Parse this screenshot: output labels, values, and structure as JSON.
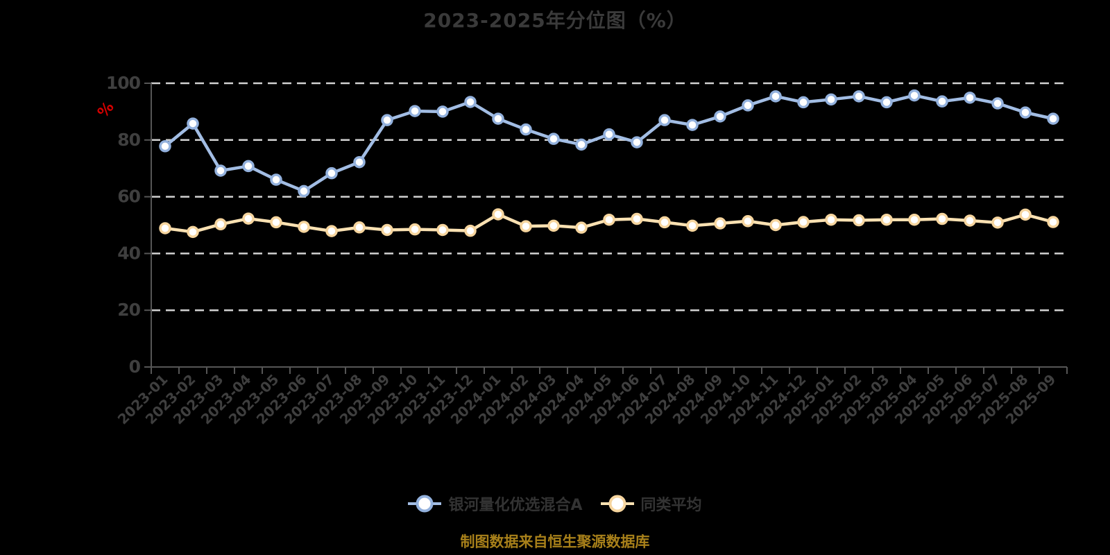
{
  "chart_data": {
    "type": "line",
    "title": "2023-2025年分位图（%）",
    "ylabel": "%",
    "xlabel": "",
    "ylim": [
      0,
      100
    ],
    "y_ticks": [
      0,
      20,
      40,
      60,
      80,
      100
    ],
    "grid": true,
    "grid_style": "dashed",
    "legend_position": "bottom",
    "categories": [
      "2023-01",
      "2023-02",
      "2023-03",
      "2023-04",
      "2023-05",
      "2023-06",
      "2023-07",
      "2023-08",
      "2023-09",
      "2023-10",
      "2023-11",
      "2023-12",
      "2024-01",
      "2024-02",
      "2024-03",
      "2024-04",
      "2024-05",
      "2024-06",
      "2024-07",
      "2024-08",
      "2024-09",
      "2024-10",
      "2024-11",
      "2024-12",
      "2025-01",
      "2025-02",
      "2025-03",
      "2025-04",
      "2025-05",
      "2025-06",
      "2025-07",
      "2025-08",
      "2025-09"
    ],
    "series": [
      {
        "name": "银河量化优选混合A",
        "color": "#a2bde4",
        "marker_ring": "#93b1dd",
        "values": [
          77.8,
          85.8,
          69.2,
          70.8,
          66.0,
          62.0,
          68.3,
          72.2,
          87.0,
          90.2,
          90.0,
          93.4,
          87.5,
          83.7,
          80.4,
          78.4,
          82.0,
          79.2,
          87.0,
          85.3,
          88.3,
          92.2,
          95.4,
          93.3,
          94.3,
          95.4,
          93.3,
          95.7,
          93.6,
          94.9,
          92.9,
          89.7,
          87.5
        ]
      },
      {
        "name": "同类平均",
        "color": "#fae1b2",
        "marker_ring": "#f6d59e",
        "values": [
          48.9,
          47.6,
          50.3,
          52.3,
          51.0,
          49.4,
          47.9,
          49.2,
          48.3,
          48.5,
          48.3,
          48.0,
          53.8,
          49.6,
          49.8,
          49.1,
          51.9,
          52.2,
          51.0,
          49.8,
          50.6,
          51.4,
          50.0,
          51.1,
          51.9,
          51.7,
          51.9,
          51.9,
          52.2,
          51.6,
          50.9,
          53.7,
          51.1
        ]
      }
    ]
  },
  "footer": {
    "text": "制图数据来自恒生聚源数据库"
  },
  "colors": {
    "background": "#000000",
    "title_text": "#3a3a3a",
    "axis_label": "#3f3f3f",
    "axis_line": "#565656",
    "gridline": "#d2d2d2",
    "unit_label": "#d40000",
    "legend_text": "#333333",
    "footer_text": "#a8801a"
  }
}
